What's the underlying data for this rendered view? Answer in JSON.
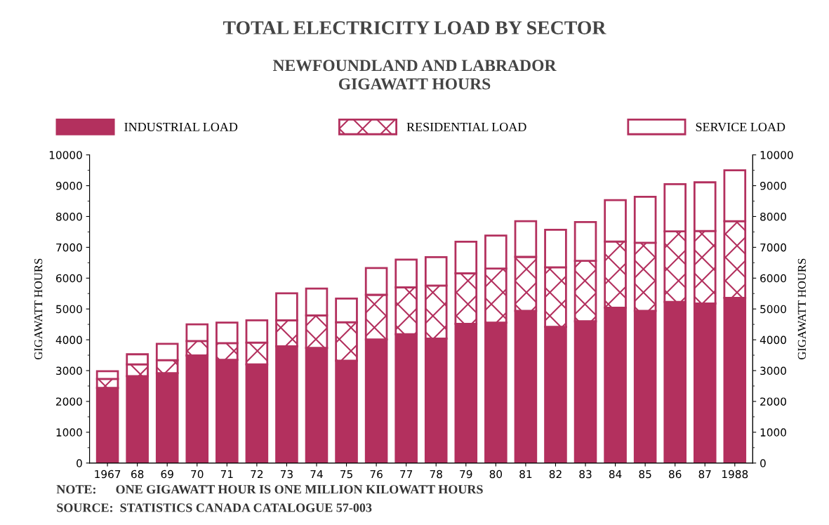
{
  "chart_data": {
    "type": "bar",
    "stacked": true,
    "title": "TOTAL ELECTRICITY LOAD BY SECTOR",
    "subtitle": "NEWFOUNDLAND AND LABRADOR\nGIGAWATT HOURS",
    "ylabel": "GIGAWATT HOURS",
    "y2label": "GIGAWATT HOURS",
    "categories": [
      "1967",
      "68",
      "69",
      "70",
      "71",
      "72",
      "73",
      "74",
      "75",
      "76",
      "77",
      "78",
      "79",
      "80",
      "81",
      "82",
      "83",
      "84",
      "85",
      "86",
      "87",
      "1988"
    ],
    "series": [
      {
        "name": "INDUSTRIAL LOAD",
        "color": "#b3305e",
        "values": [
          2440,
          2820,
          2920,
          3490,
          3350,
          3200,
          3790,
          3740,
          3320,
          4010,
          4180,
          4040,
          4520,
          4560,
          4940,
          4420,
          4600,
          5040,
          4940,
          5230,
          5180,
          5360
        ]
      },
      {
        "name": "RESIDENTIAL LOAD",
        "color": "#b3305e",
        "values": [
          290,
          380,
          420,
          470,
          540,
          710,
          840,
          1050,
          1250,
          1450,
          1520,
          1720,
          1640,
          1750,
          1750,
          1930,
          1960,
          2150,
          2210,
          2290,
          2350,
          2490
        ]
      },
      {
        "name": "SERVICE LOAD",
        "color": "#b3305e",
        "values": [
          250,
          330,
          530,
          540,
          670,
          720,
          880,
          870,
          770,
          870,
          900,
          920,
          1020,
          1070,
          1160,
          1220,
          1260,
          1340,
          1490,
          1530,
          1580,
          1650
        ]
      }
    ],
    "ylim": [
      0,
      10000
    ],
    "yticks": [
      0,
      1000,
      2000,
      3000,
      4000,
      5000,
      6000,
      7000,
      8000,
      9000,
      10000
    ],
    "y2lim": [
      0,
      10000
    ],
    "y2ticks": [
      0,
      1000,
      2000,
      3000,
      4000,
      5000,
      6000,
      7000,
      8000,
      9000,
      10000
    ],
    "legend": "top",
    "grid": false,
    "annotations": [
      "NOTE:      ONE GIGAWATT HOUR IS ONE MILLION KILOWATT HOURS",
      "SOURCE:  STATISTICS CANADA CATALOGUE 57-003"
    ]
  }
}
